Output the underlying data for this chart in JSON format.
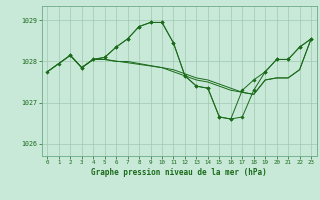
{
  "background_color": "#c8e8d8",
  "plot_bg_color": "#c8e8d8",
  "grid_color": "#a0c8b0",
  "line_color": "#1a6b1a",
  "marker_color": "#1a6b1a",
  "title": "Graphe pression niveau de la mer (hPa)",
  "xlim": [
    -0.5,
    23.5
  ],
  "ylim": [
    1025.7,
    1029.35
  ],
  "yticks": [
    1026,
    1027,
    1028,
    1029
  ],
  "xticks": [
    0,
    1,
    2,
    3,
    4,
    5,
    6,
    7,
    8,
    9,
    10,
    11,
    12,
    13,
    14,
    15,
    16,
    17,
    18,
    19,
    20,
    21,
    22,
    23
  ],
  "series": [
    {
      "x": [
        0,
        1,
        2,
        3,
        4,
        5,
        6,
        7,
        8,
        9,
        10,
        11,
        12,
        13,
        14,
        15,
        16,
        17,
        18,
        19,
        20,
        21,
        22,
        23
      ],
      "y": [
        1027.75,
        1027.95,
        1028.15,
        1027.85,
        1028.05,
        1028.1,
        1028.35,
        1028.55,
        1028.85,
        1028.95,
        1028.95,
        1028.45,
        1027.65,
        1027.4,
        1027.35,
        1026.65,
        1026.6,
        1027.3,
        1027.55,
        1027.75,
        1028.05,
        1028.05,
        1028.35,
        1028.55
      ],
      "has_markers": true
    },
    {
      "x": [
        0,
        1,
        2,
        3,
        4,
        5,
        6,
        7,
        8,
        9,
        10,
        11,
        12,
        13,
        14,
        15,
        16,
        17,
        18,
        19,
        20,
        21,
        22,
        23
      ],
      "y": [
        1027.75,
        1027.95,
        1028.15,
        1027.85,
        1028.05,
        1028.05,
        1028.0,
        1028.0,
        1027.95,
        1027.9,
        1027.85,
        1027.8,
        1027.7,
        1027.6,
        1027.55,
        1027.45,
        1027.35,
        1027.25,
        1027.2,
        1027.55,
        1027.6,
        1027.6,
        1027.8,
        1028.55
      ],
      "has_markers": false
    },
    {
      "x": [
        0,
        2,
        3,
        4,
        5,
        10,
        11,
        12,
        13,
        14,
        15,
        16,
        17,
        18,
        19,
        20,
        21,
        22,
        23
      ],
      "y": [
        1027.75,
        1028.15,
        1027.85,
        1028.05,
        1028.05,
        1027.85,
        1027.75,
        1027.65,
        1027.55,
        1027.5,
        1027.4,
        1027.3,
        1027.25,
        1027.2,
        1027.55,
        1027.6,
        1027.6,
        1027.8,
        1028.55
      ],
      "has_markers": false
    },
    {
      "x": [
        2,
        3,
        4,
        5,
        6,
        7,
        8,
        9,
        10,
        11,
        12,
        13,
        14,
        15,
        16,
        17,
        18,
        19,
        20,
        21,
        22,
        23
      ],
      "y": [
        1028.15,
        1027.85,
        1028.05,
        1028.1,
        1028.35,
        1028.55,
        1028.85,
        1028.95,
        1028.95,
        1028.45,
        1027.65,
        1027.4,
        1027.35,
        1026.65,
        1026.6,
        1026.65,
        1027.3,
        1027.75,
        1028.05,
        1028.05,
        1028.35,
        1028.55
      ],
      "has_markers": true
    }
  ]
}
